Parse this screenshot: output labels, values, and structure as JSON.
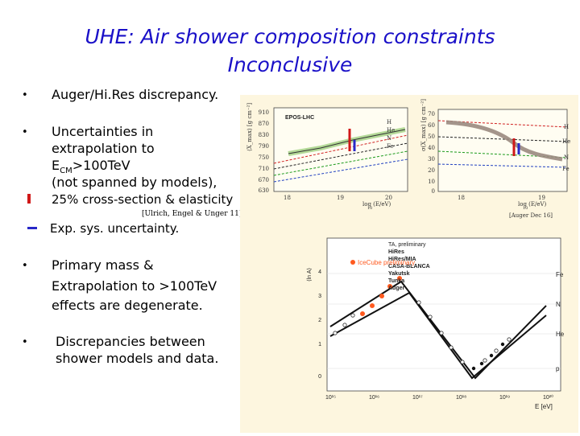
{
  "slide": {
    "title_line1": "UHE: Air shower composition constraints",
    "title_line2": "Inconclusive",
    "bullets": {
      "b1": "Auger/Hi.Res discrepancy.",
      "b2_l1": "Uncertainties in",
      "b2_l2": "extrapolation to",
      "b2_l3_main": "E",
      "b2_l3_sub": "CM",
      "b2_l3_rest": ">100TeV",
      "b2_l4": "(not spanned by models),",
      "b2_l5": "25% cross-section & elasticity",
      "b2_ref": "[Ulrich, Engel & Unger 11]",
      "b2_l6": "Exp. sys. uncertainty.",
      "b3_l1": "Primary mass &",
      "b3_l2": "Extrapolation to >100TeV",
      "b3_l3": "effects are degenerate.",
      "b4_l1": "Discrepancies between",
      "b4_l2": "shower models and data."
    },
    "bullet_char": "•",
    "accent_title": "#1a10c8",
    "marker_red": "#d01818",
    "marker_blue": "#2828c8"
  },
  "figures": {
    "left": {
      "label": "EPOS-LHC",
      "species": [
        "H",
        "He",
        "N",
        "Fe"
      ],
      "ylabel": "⟨X_max⟩ [g cm⁻²]",
      "xlabel": "log (E/eV)",
      "xlabel_sub": "10",
      "xticks": [
        "18",
        "19",
        "20"
      ],
      "yticks": [
        "630",
        "670",
        "710",
        "750",
        "790",
        "830",
        "870",
        "910"
      ]
    },
    "right": {
      "species": [
        "H",
        "He",
        "N",
        "Fe"
      ],
      "ylabel": "σ(X_max) [g cm⁻²]",
      "xlabel": "log (E/eV)",
      "xlabel_sub": "10",
      "xticks": [
        "18",
        "19"
      ],
      "yticks": [
        "0",
        "10",
        "20",
        "30",
        "40",
        "50",
        "60",
        "70"
      ],
      "ref": "[Auger Dec 16]"
    },
    "bottom": {
      "ylabel": "⟨ln A⟩",
      "legend": [
        "TA, preliminary",
        "HiRes",
        "HiRes/MIA",
        "CASA-BLANCA",
        "Yakutsk",
        "Tunka",
        "Auger"
      ],
      "icecube": "IceCube preliminary",
      "species": [
        "Fe",
        "N",
        "He",
        "p"
      ],
      "yticks": [
        "0",
        "1",
        "2",
        "3",
        "4"
      ],
      "xticks": [
        "10¹⁵",
        "10¹⁶",
        "10¹⁷",
        "10¹⁸",
        "10¹⁹",
        "10²⁰"
      ],
      "xlabel": "E [eV]"
    }
  }
}
